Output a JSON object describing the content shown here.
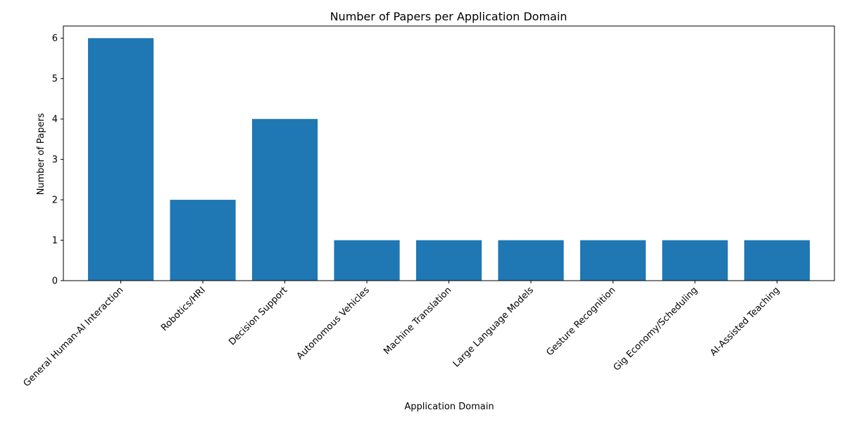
{
  "chart_data": {
    "type": "bar",
    "title": "Number of Papers per Application Domain",
    "xlabel": "Application Domain",
    "ylabel": "Number of Papers",
    "categories": [
      "General Human-AI Interaction",
      "Robotics/HRI",
      "Decision Support",
      "Autonomous Vehicles",
      "Machine Translation",
      "Large Language Models",
      "Gesture Recognition",
      "Gig Economy/Scheduling",
      "AI-Assisted Teaching"
    ],
    "values": [
      6,
      2,
      4,
      1,
      1,
      1,
      1,
      1,
      1
    ],
    "ylim": [
      0,
      6.3
    ],
    "yticks": [
      0,
      1,
      2,
      3,
      4,
      5,
      6
    ],
    "grid": false,
    "bar_color": "#1f77b4"
  }
}
